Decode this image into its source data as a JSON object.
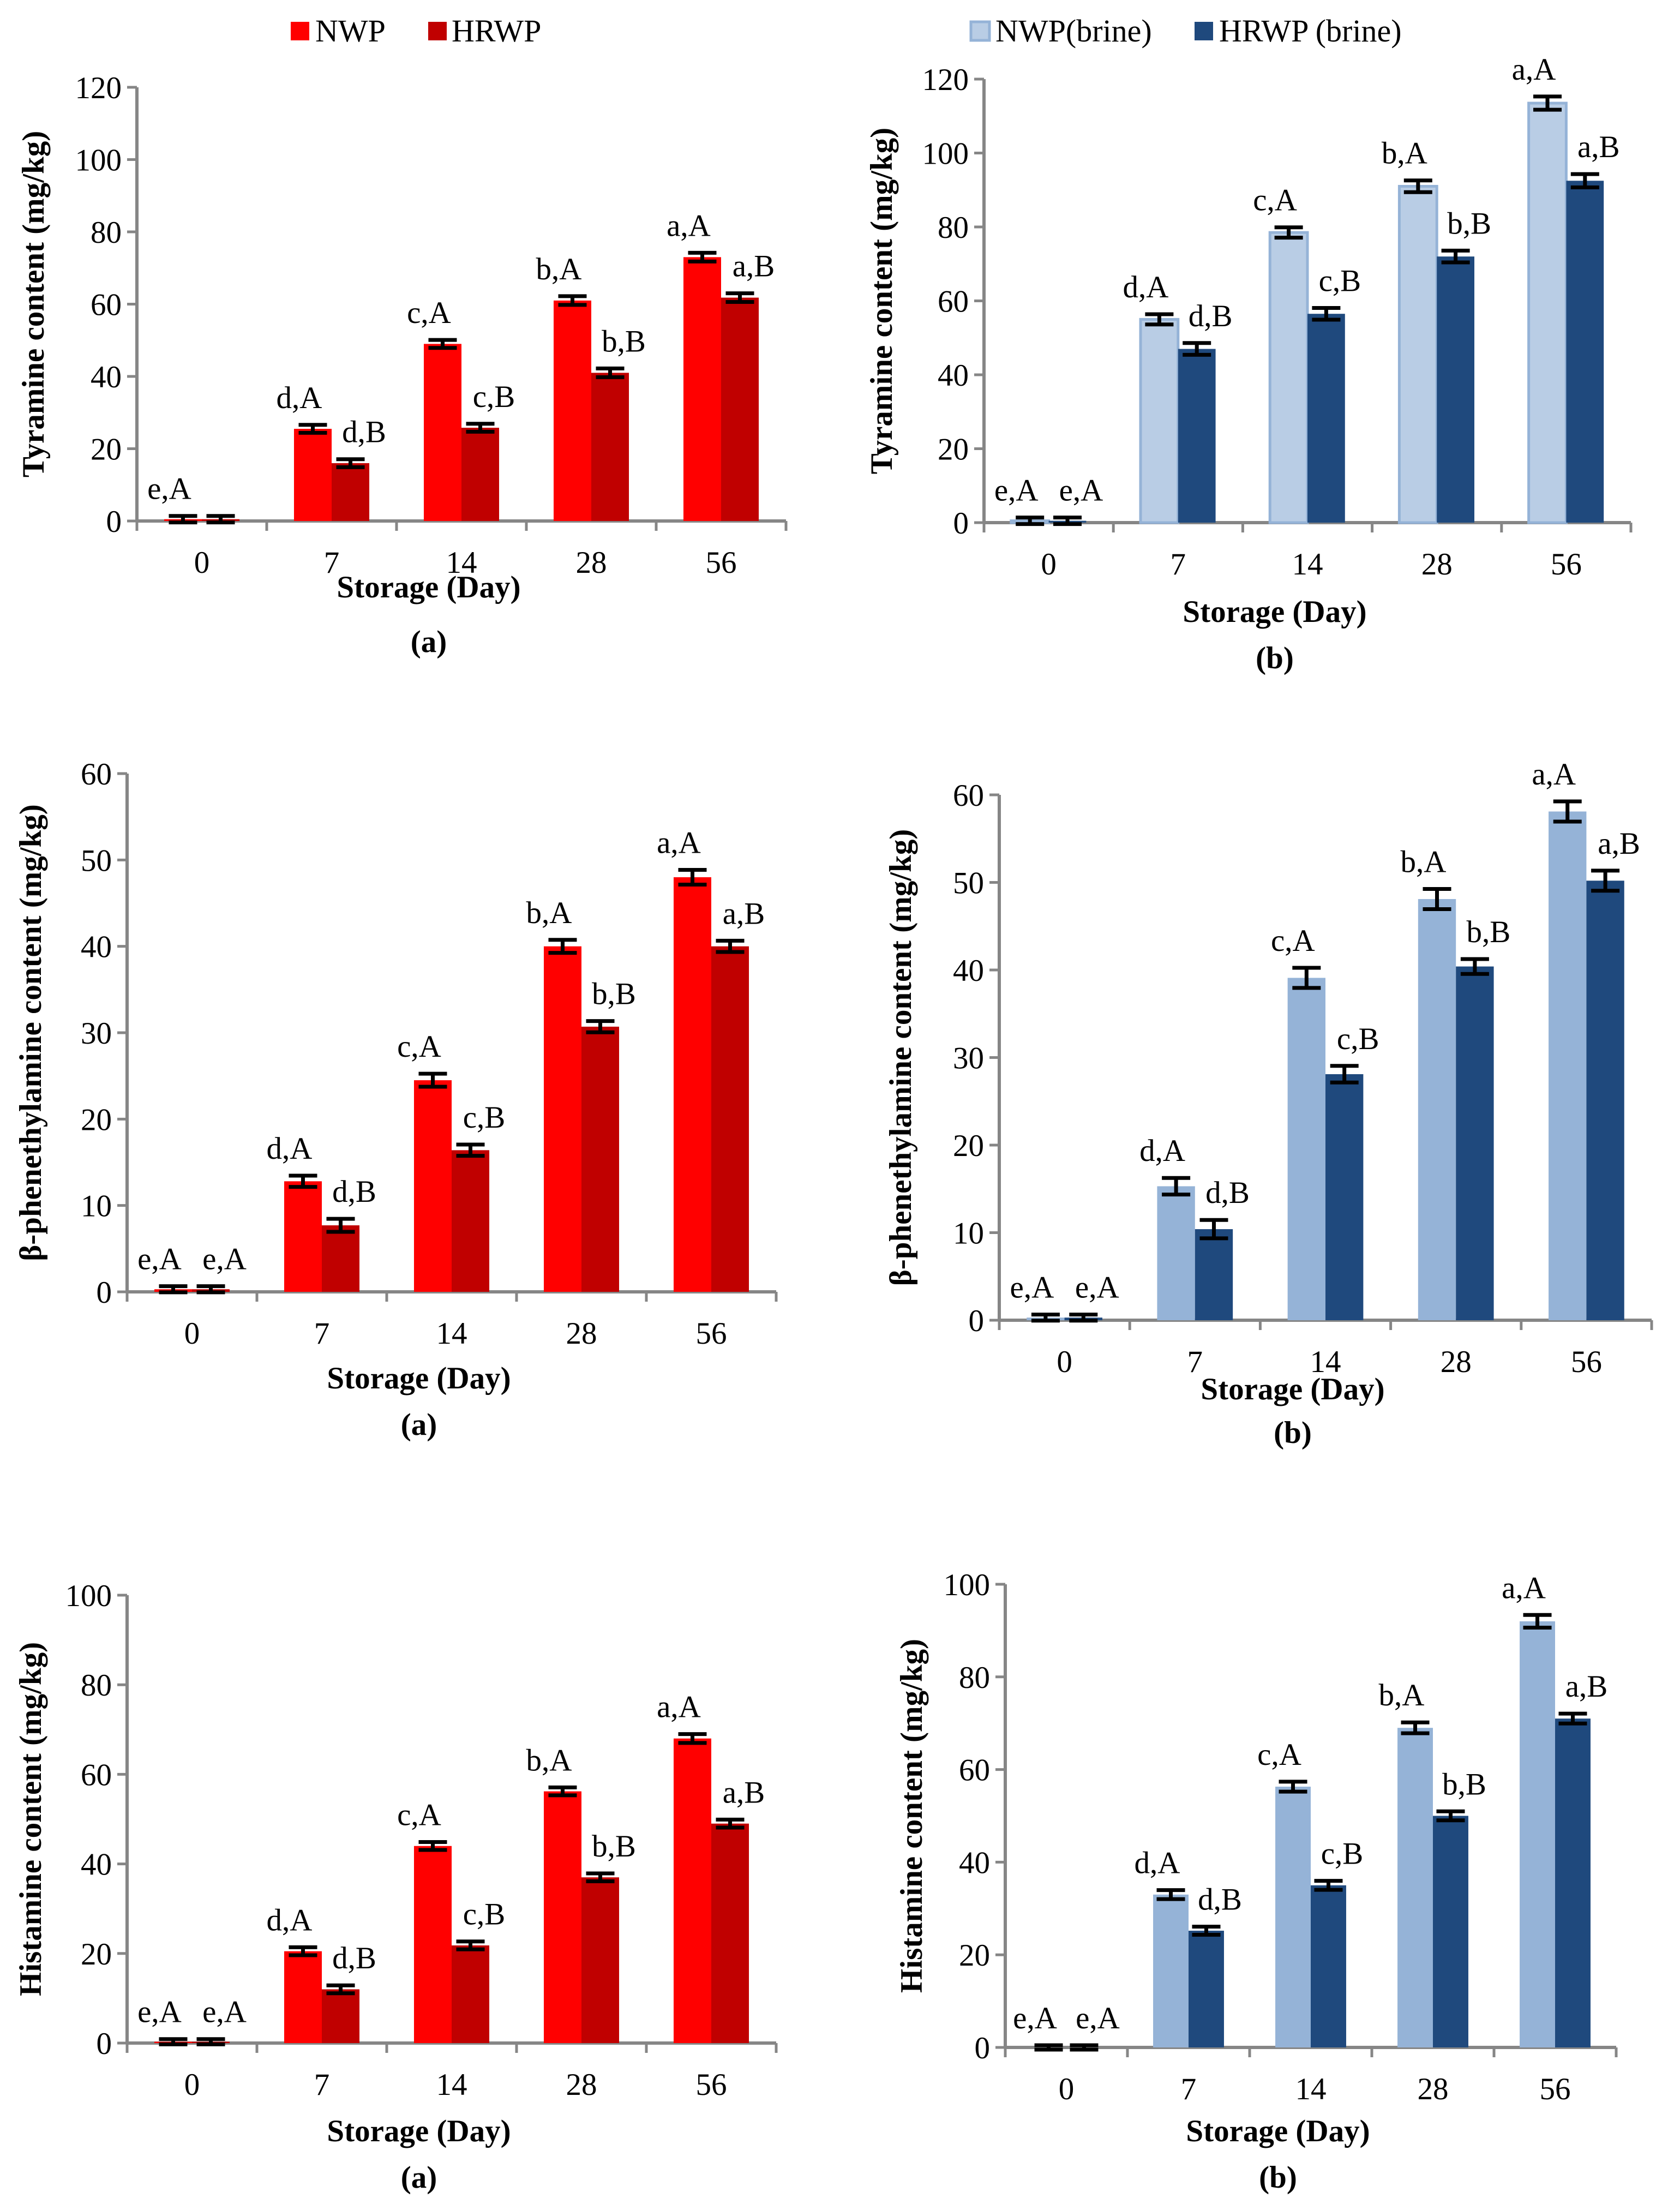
{
  "legend_left": {
    "series": [
      "NWP",
      "HRWP"
    ],
    "colors": [
      "#FF0000",
      "#C00000"
    ]
  },
  "legend_right": {
    "series": [
      "NWP(brine)",
      "HRWP (brine)"
    ],
    "colors": [
      "#B9CDE5",
      "#1F497D"
    ]
  },
  "chart_data": [
    {
      "type": "bar",
      "panel": "(a)",
      "title": "",
      "xlabel": "Storage (Day)",
      "ylabel": "Tyramine  content (mg/kg)",
      "categories": [
        "0",
        "7",
        "14",
        "28",
        "56"
      ],
      "ylim": [
        0,
        120
      ],
      "yticks": [
        0,
        20,
        40,
        60,
        80,
        100,
        120
      ],
      "colors": [
        "#FF0000",
        "#C00000"
      ],
      "series": [
        {
          "name": "NWP",
          "values": [
            0.5,
            25.5,
            49,
            61,
            73
          ],
          "errors": [
            0.3,
            0.5,
            0.5,
            0.6,
            0.6
          ],
          "labels": [
            "e,A",
            "d,A",
            "c,A",
            "b,A",
            "a,A"
          ]
        },
        {
          "name": "HRWP",
          "values": [
            0.5,
            16,
            25.8,
            41,
            61.8
          ],
          "errors": [
            0.3,
            0.5,
            0.5,
            0.6,
            0.6
          ],
          "labels": [
            null,
            "d,B",
            "c,B",
            "b,B",
            "a,B"
          ]
        }
      ]
    },
    {
      "type": "bar",
      "panel": "(b)",
      "title": "",
      "xlabel": "Storage (Day)",
      "ylabel": "Tyramine  content (mg/kg)",
      "categories": [
        "0",
        "7",
        "14",
        "28",
        "56"
      ],
      "ylim": [
        0,
        120
      ],
      "yticks": [
        0,
        20,
        40,
        60,
        80,
        100,
        120
      ],
      "colors": [
        "#B9CDE5",
        "#1F497D"
      ],
      "series": [
        {
          "name": "NWP(brine)",
          "values": [
            0.5,
            55,
            78.5,
            91,
            113.5
          ],
          "errors": [
            0.3,
            0.8,
            0.8,
            1,
            1.2
          ],
          "labels": [
            "e,A",
            "d,A",
            "c,A",
            "b,A",
            "a,A"
          ]
        },
        {
          "name": "HRWP (brine)",
          "values": [
            0.5,
            47,
            56.5,
            72,
            92.5
          ],
          "errors": [
            0.3,
            1,
            1,
            1,
            1.2
          ],
          "labels": [
            "e,A",
            "d,B",
            "c,B",
            "b,B",
            "a,B"
          ]
        }
      ]
    },
    {
      "type": "bar",
      "panel": "(a)",
      "title": "",
      "xlabel": "Storage (Day)",
      "ylabel": "β-phenethylamine  content (mg/kg)",
      "categories": [
        "0",
        "7",
        "14",
        "28",
        "56"
      ],
      "ylim": [
        0,
        60
      ],
      "yticks": [
        0,
        10,
        20,
        30,
        40,
        50,
        60
      ],
      "colors": [
        "#FF0000",
        "#C00000"
      ],
      "series": [
        {
          "name": "NWP",
          "values": [
            0.3,
            12.8,
            24.5,
            40,
            48
          ],
          "errors": [
            0.1,
            0.4,
            0.5,
            0.5,
            0.6
          ],
          "labels": [
            "e,A",
            "d,A",
            "c,A",
            "b,A",
            "a,A"
          ]
        },
        {
          "name": "HRWP",
          "values": [
            0.3,
            7.7,
            16.4,
            30.7,
            40
          ],
          "errors": [
            0.1,
            0.5,
            0.4,
            0.4,
            0.4
          ],
          "labels": [
            "e,A",
            "d,B",
            "c,B",
            "b,B",
            "a,B"
          ]
        }
      ]
    },
    {
      "type": "bar",
      "panel": "(b)",
      "title": "",
      "xlabel": "Storage (Day)",
      "ylabel": "β-phenethylamine  content (mg/kg)",
      "categories": [
        "0",
        "7",
        "14",
        "28",
        "56"
      ],
      "ylim": [
        0,
        60
      ],
      "yticks": [
        0,
        10,
        20,
        30,
        40,
        50,
        60
      ],
      "colors": [
        "#95B3D7",
        "#1F497D"
      ],
      "series": [
        {
          "name": "NWP(brine)",
          "values": [
            0.3,
            15.3,
            39.1,
            48.1,
            58.1
          ],
          "errors": [
            0.1,
            0.7,
            0.9,
            0.9,
            0.9
          ],
          "labels": [
            "e,A",
            "d,A",
            "c,A",
            "b,A",
            "a,A"
          ]
        },
        {
          "name": "HRWP (brine)",
          "values": [
            0.3,
            10.4,
            28.1,
            40.4,
            50.2
          ],
          "errors": [
            0.1,
            0.8,
            0.7,
            0.6,
            0.9
          ],
          "labels": [
            "e,A",
            "d,B",
            "c,B",
            "b,B",
            "a,B"
          ]
        }
      ]
    },
    {
      "type": "bar",
      "panel": "(a)",
      "title": "",
      "xlabel": "Storage (Day)",
      "ylabel": "Histamine  content (mg/kg)",
      "categories": [
        "0",
        "7",
        "14",
        "28",
        "56"
      ],
      "ylim": [
        0,
        100
      ],
      "yticks": [
        0,
        20,
        40,
        60,
        80,
        100
      ],
      "colors": [
        "#FF0000",
        "#C00000"
      ],
      "series": [
        {
          "name": "NWP",
          "values": [
            0.3,
            20.5,
            44,
            56.2,
            68
          ],
          "errors": [
            0.1,
            0.4,
            0.4,
            0.4,
            0.5
          ],
          "labels": [
            "e,A",
            "d,A",
            "c,A",
            "b,A",
            "a,A"
          ]
        },
        {
          "name": "HRWP",
          "values": [
            0.3,
            12,
            21.8,
            37,
            49
          ],
          "errors": [
            0.1,
            0.4,
            0.4,
            0.4,
            0.4
          ],
          "labels": [
            "e,A",
            "d,B",
            "c,B",
            "b,B",
            "a,B"
          ]
        }
      ]
    },
    {
      "type": "bar",
      "panel": "(b)",
      "title": "",
      "xlabel": "Storage (Day)",
      "ylabel": "Histamine  content (mg/kg)",
      "categories": [
        "0",
        "7",
        "14",
        "28",
        "56"
      ],
      "ylim": [
        0,
        100
      ],
      "yticks": [
        0,
        20,
        40,
        60,
        80,
        100
      ],
      "colors": [
        "#95B3D7",
        "#1F497D"
      ],
      "series": [
        {
          "name": "NWP(brine)",
          "values": [
            0,
            33,
            56.3,
            69,
            92
          ],
          "errors": [
            0,
            0.5,
            0.6,
            0.7,
            0.9
          ],
          "labels": [
            "e,A",
            "d,A",
            "c,A",
            "b,A",
            "a,A"
          ]
        },
        {
          "name": "HRWP (brine)",
          "values": [
            0,
            25.2,
            35,
            50,
            71
          ],
          "errors": [
            0,
            0.4,
            0.5,
            0.5,
            0.6
          ],
          "labels": [
            "e,A",
            "d,B",
            "c,B",
            "b,B",
            "a,B"
          ]
        }
      ]
    }
  ]
}
